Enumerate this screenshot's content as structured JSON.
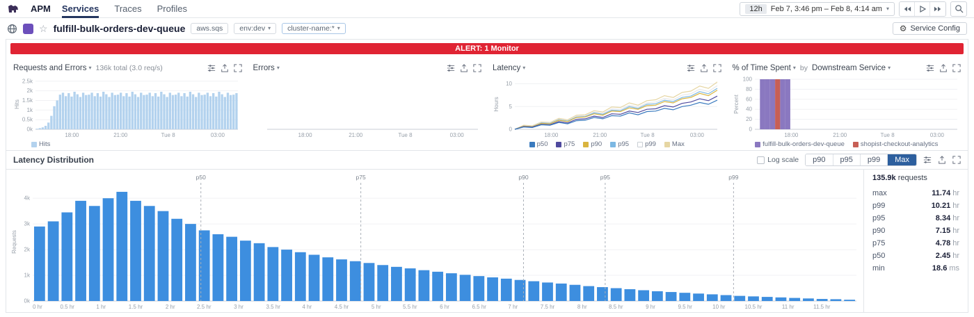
{
  "nav": {
    "product": "APM",
    "tabs": [
      {
        "label": "Services",
        "active": true
      },
      {
        "label": "Traces"
      },
      {
        "label": "Profiles"
      }
    ],
    "time": {
      "preset": "12h",
      "range": "Feb 7, 3:46 pm – Feb 8, 4:14 am"
    }
  },
  "service_header": {
    "name": "fulfill-bulk-orders-dev-queue",
    "type_tag": "aws.sqs",
    "env_tag": "env:dev",
    "cluster_tag": "cluster-name:*",
    "config_label": "Service Config"
  },
  "alert": {
    "text": "ALERT: 1 Monitor"
  },
  "charts": {
    "requests": {
      "title": "Requests and Errors",
      "summary": "136k total (3.0 req/s)"
    },
    "errors": {
      "title": "Errors"
    },
    "latency": {
      "title": "Latency"
    },
    "time_spent": {
      "title": "% of Time Spent",
      "by": "by",
      "group": "Downstream Service"
    }
  },
  "distribution": {
    "title": "Latency Distribution",
    "log_scale": "Log scale",
    "buttons": [
      {
        "label": "p90"
      },
      {
        "label": "p95"
      },
      {
        "label": "p99"
      },
      {
        "label": "Max",
        "active": true
      }
    ],
    "total": "135.9k",
    "total_suffix": "requests",
    "stats": [
      {
        "label": "max",
        "value": "11.74",
        "unit": "hr"
      },
      {
        "label": "p99",
        "value": "10.21",
        "unit": "hr"
      },
      {
        "label": "p95",
        "value": "8.34",
        "unit": "hr"
      },
      {
        "label": "p90",
        "value": "7.15",
        "unit": "hr"
      },
      {
        "label": "p75",
        "value": "4.78",
        "unit": "hr"
      },
      {
        "label": "p50",
        "value": "2.45",
        "unit": "hr"
      },
      {
        "label": "min",
        "value": "18.6",
        "unit": "ms"
      }
    ]
  },
  "colors": {
    "brand_purple": "#632ca6",
    "alert_red": "#e02433",
    "active_tab": "#24355f",
    "max_button": "#2d5f9e"
  },
  "chart_data": [
    {
      "id": "requests",
      "type": "bar",
      "title": "Requests and Errors",
      "ylabel": "Hits",
      "ymax": 2.6,
      "yticks": [
        {
          "v": 0,
          "label": "0k"
        },
        {
          "v": 0.5,
          "label": "0.5k"
        },
        {
          "v": 1,
          "label": "1k"
        },
        {
          "v": 1.5,
          "label": "1.5k"
        },
        {
          "v": 2,
          "label": "2k"
        },
        {
          "v": 2.5,
          "label": "2.5k"
        }
      ],
      "x_ticks": [
        {
          "pos": 0.18,
          "label": "18:00"
        },
        {
          "pos": 0.42,
          "label": "21:00"
        },
        {
          "pos": 0.655,
          "label": "Tue 8"
        },
        {
          "pos": 0.9,
          "label": "03:00"
        }
      ],
      "bar_color": "#b3d2ee",
      "values": [
        0.03,
        0.06,
        0.1,
        0.18,
        0.35,
        0.7,
        1.2,
        1.5,
        1.8,
        1.9,
        1.72,
        1.88,
        1.7,
        1.95,
        1.82,
        1.68,
        1.9,
        1.78,
        1.8,
        1.9,
        1.72,
        1.88,
        1.7,
        1.95,
        1.82,
        1.68,
        1.9,
        1.78,
        1.8,
        1.9,
        1.72,
        1.88,
        1.7,
        1.95,
        1.82,
        1.68,
        1.9,
        1.78,
        1.8,
        1.9,
        1.72,
        1.88,
        1.7,
        1.95,
        1.82,
        1.68,
        1.9,
        1.78,
        1.8,
        1.9,
        1.72,
        1.88,
        1.7,
        1.95,
        1.82,
        1.68,
        1.9,
        1.78,
        1.8,
        1.9,
        1.72,
        1.88,
        1.7,
        1.95,
        1.82,
        1.68,
        1.9,
        1.78,
        1.8,
        1.88
      ],
      "legend": [
        {
          "name": "Hits",
          "color": "#b3d2ee"
        }
      ]
    },
    {
      "id": "errors",
      "type": "empty",
      "title": "Errors",
      "yticks": [],
      "x_ticks": [
        {
          "pos": 0.18,
          "label": "18:00"
        },
        {
          "pos": 0.42,
          "label": "21:00"
        },
        {
          "pos": 0.655,
          "label": "Tue 8"
        },
        {
          "pos": 0.9,
          "label": "03:00"
        }
      ]
    },
    {
      "id": "latency",
      "type": "line",
      "title": "Latency",
      "ylabel": "Hours",
      "ymax": 11,
      "yticks": [
        {
          "v": 0,
          "label": "0"
        },
        {
          "v": 5,
          "label": "5"
        },
        {
          "v": 10,
          "label": "10"
        }
      ],
      "x_ticks": [
        {
          "pos": 0.18,
          "label": "18:00"
        },
        {
          "pos": 0.42,
          "label": "21:00"
        },
        {
          "pos": 0.655,
          "label": "Tue 8"
        },
        {
          "pos": 0.9,
          "label": "03:00"
        }
      ],
      "series": [
        {
          "name": "Max",
          "color": "#e6d6a3",
          "values": [
            0,
            0.9,
            0.8,
            1.6,
            1.5,
            2.4,
            2.1,
            3.1,
            3.2,
            4.1,
            3.8,
            4.9,
            4.8,
            5.8,
            5.3,
            6.3,
            6.5,
            7.4,
            7.0,
            8.1,
            8.4,
            9.5,
            9.0,
            10.4
          ]
        },
        {
          "name": "p99",
          "color": "#e8e8e8",
          "values": [
            0,
            0.8,
            0.7,
            1.5,
            1.4,
            2.2,
            1.9,
            2.9,
            3.0,
            3.8,
            3.5,
            4.5,
            4.4,
            5.3,
            4.9,
            5.8,
            6.0,
            6.8,
            6.5,
            7.5,
            7.8,
            8.8,
            8.3,
            9.6
          ]
        },
        {
          "name": "p95",
          "color": "#7cb8e3",
          "values": [
            0,
            0.7,
            0.6,
            1.4,
            1.3,
            2.1,
            1.8,
            2.7,
            2.8,
            3.6,
            3.3,
            4.2,
            4.1,
            5.0,
            4.6,
            5.5,
            5.6,
            6.4,
            6.1,
            7.0,
            7.3,
            8.3,
            7.8,
            9.0
          ]
        },
        {
          "name": "p90",
          "color": "#d9b43f",
          "values": [
            0,
            0.7,
            0.6,
            1.3,
            1.2,
            2.0,
            1.7,
            2.6,
            2.7,
            3.4,
            3.1,
            4.0,
            3.9,
            4.7,
            4.4,
            5.2,
            5.3,
            6.1,
            5.8,
            6.7,
            7.0,
            7.9,
            7.4,
            8.6
          ]
        },
        {
          "name": "p75",
          "color": "#4f4a9e",
          "values": [
            0,
            0.6,
            0.5,
            1.1,
            1.0,
            1.7,
            1.4,
            2.2,
            2.3,
            2.9,
            2.6,
            3.4,
            3.3,
            4.0,
            3.7,
            4.4,
            4.5,
            5.2,
            4.9,
            5.7,
            6.0,
            6.7,
            6.3,
            7.3
          ]
        },
        {
          "name": "p50",
          "color": "#3a7bbf",
          "values": [
            0,
            0.5,
            0.4,
            1.0,
            0.9,
            1.5,
            1.2,
            1.9,
            2.0,
            2.6,
            2.3,
            3.0,
            2.9,
            3.6,
            3.2,
            3.9,
            4.0,
            4.6,
            4.3,
            5.0,
            5.3,
            5.9,
            5.5,
            6.4
          ]
        }
      ],
      "legend": [
        {
          "name": "p50",
          "color": "#3a7bbf"
        },
        {
          "name": "p75",
          "color": "#4f4a9e"
        },
        {
          "name": "p90",
          "color": "#d9b43f"
        },
        {
          "name": "p95",
          "color": "#7cb8e3"
        },
        {
          "name": "p99",
          "color": "#ffffff",
          "border": "#c9ced4"
        },
        {
          "name": "Max",
          "color": "#e6d6a3"
        }
      ]
    },
    {
      "id": "timespent",
      "type": "stacked",
      "title": "% of Time Spent",
      "ylabel": "Percent",
      "ymax": 100,
      "yticks": [
        {
          "v": 0,
          "label": "0"
        },
        {
          "v": 20,
          "label": "20"
        },
        {
          "v": 40,
          "label": "40"
        },
        {
          "v": 60,
          "label": "60"
        },
        {
          "v": 80,
          "label": "80"
        },
        {
          "v": 100,
          "label": "100"
        }
      ],
      "x_ticks": [
        {
          "pos": 0.18,
          "label": "18:00"
        },
        {
          "pos": 0.42,
          "label": "21:00"
        },
        {
          "pos": 0.655,
          "label": "Tue 8"
        },
        {
          "pos": 0.9,
          "label": "03:00"
        }
      ],
      "series": [
        {
          "name": "fulfill-bulk-orders-dev-queue",
          "color": "#8a78c0",
          "values": [
            0,
            100,
            100,
            100,
            0,
            100,
            100,
            0,
            0,
            0,
            0,
            0,
            0,
            0,
            0,
            0,
            0,
            0,
            0,
            0,
            0,
            0,
            0,
            0,
            0,
            0,
            0,
            0,
            0,
            0,
            0,
            0,
            0,
            0,
            0,
            0,
            0,
            0,
            0,
            0
          ]
        },
        {
          "name": "shopist-checkout-analytics",
          "color": "#c75f55",
          "values": [
            0,
            0,
            0,
            0,
            100,
            0,
            0,
            0,
            0,
            0,
            0,
            0,
            0,
            0,
            0,
            0,
            0,
            0,
            0,
            0,
            0,
            0,
            0,
            0,
            0,
            0,
            0,
            0,
            0,
            0,
            0,
            0,
            0,
            0,
            0,
            0,
            0,
            0,
            0,
            0
          ]
        }
      ],
      "legend": [
        {
          "name": "fulfill-bulk-orders-dev-queue",
          "color": "#8a78c0"
        },
        {
          "name": "shopist-checkout-analytics",
          "color": "#c75f55"
        }
      ]
    },
    {
      "id": "distribution",
      "type": "histogram",
      "title": "Latency Distribution",
      "ylabel": "Requests",
      "ymax": 4.6,
      "xmax": 12,
      "bin_width_hr": 0.2,
      "yticks": [
        {
          "v": 0,
          "label": "0k"
        },
        {
          "v": 1,
          "label": "1k"
        },
        {
          "v": 2,
          "label": "2k"
        },
        {
          "v": 3,
          "label": "3k"
        },
        {
          "v": 4,
          "label": "4k"
        }
      ],
      "bar_color": "#3d8edf",
      "values": [
        2.9,
        3.1,
        3.45,
        3.9,
        3.7,
        4.0,
        4.25,
        3.9,
        3.7,
        3.5,
        3.2,
        3.0,
        2.75,
        2.6,
        2.5,
        2.35,
        2.25,
        2.1,
        2.0,
        1.9,
        1.8,
        1.7,
        1.62,
        1.55,
        1.48,
        1.4,
        1.33,
        1.27,
        1.2,
        1.14,
        1.08,
        1.02,
        0.97,
        0.92,
        0.87,
        0.82,
        0.77,
        0.72,
        0.68,
        0.63,
        0.58,
        0.54,
        0.5,
        0.46,
        0.42,
        0.38,
        0.35,
        0.32,
        0.29,
        0.26,
        0.23,
        0.2,
        0.18,
        0.16,
        0.14,
        0.12,
        0.1,
        0.08,
        0.07,
        0.05
      ],
      "x_ticks": [
        {
          "pos": 0.0,
          "label": "0 hr"
        },
        {
          "pos": 0.042,
          "label": "0.5 hr"
        },
        {
          "pos": 0.083,
          "label": "1 hr"
        },
        {
          "pos": 0.125,
          "label": "1.5 hr"
        },
        {
          "pos": 0.167,
          "label": "2 hr"
        },
        {
          "pos": 0.208,
          "label": "2.5 hr"
        },
        {
          "pos": 0.25,
          "label": "3 hr"
        },
        {
          "pos": 0.292,
          "label": "3.5 hr"
        },
        {
          "pos": 0.333,
          "label": "4 hr"
        },
        {
          "pos": 0.375,
          "label": "4.5 hr"
        },
        {
          "pos": 0.417,
          "label": "5 hr"
        },
        {
          "pos": 0.458,
          "label": "5.5 hr"
        },
        {
          "pos": 0.5,
          "label": "6 hr"
        },
        {
          "pos": 0.542,
          "label": "6.5 hr"
        },
        {
          "pos": 0.583,
          "label": "7 hr"
        },
        {
          "pos": 0.625,
          "label": "7.5 hr"
        },
        {
          "pos": 0.667,
          "label": "8 hr"
        },
        {
          "pos": 0.708,
          "label": "8.5 hr"
        },
        {
          "pos": 0.75,
          "label": "9 hr"
        },
        {
          "pos": 0.792,
          "label": "9.5 hr"
        },
        {
          "pos": 0.833,
          "label": "10 hr"
        },
        {
          "pos": 0.875,
          "label": "10.5 hr"
        },
        {
          "pos": 0.917,
          "label": "11 hr"
        },
        {
          "pos": 0.958,
          "label": "11.5 hr"
        }
      ],
      "percentiles": [
        {
          "label": "p50",
          "x": 2.45
        },
        {
          "label": "p75",
          "x": 4.78
        },
        {
          "label": "p90",
          "x": 7.15
        },
        {
          "label": "p95",
          "x": 8.34
        },
        {
          "label": "p99",
          "x": 10.21
        }
      ]
    }
  ]
}
